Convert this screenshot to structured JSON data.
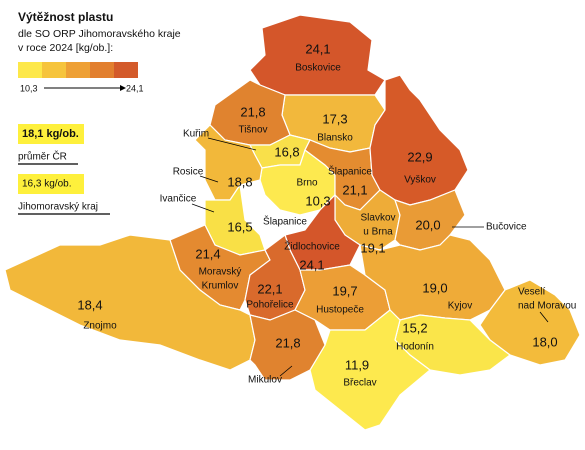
{
  "legend": {
    "title": "Výtěžnost plastu",
    "subtitle": [
      "dle SO ORP Jihomoravského kraje",
      "v roce 2024 [kg/ob.]:"
    ],
    "min": "10,3",
    "max": "24,1",
    "colors": [
      "#fde84a",
      "#f6c43c",
      "#eea035",
      "#e27f2e",
      "#d35a2a"
    ]
  },
  "references": [
    {
      "value": "18,1 kg/ob.",
      "label": "průměr ČR",
      "color": "#fef03c"
    },
    {
      "value": "16,3 kg/ob.",
      "label": "Jihomoravský kraj",
      "color": "#fef03c"
    }
  ],
  "regions": [
    {
      "name": [
        "Boskovice"
      ],
      "value": "24,1",
      "color": "#d4562a"
    },
    {
      "name": [
        "Blansko"
      ],
      "value": "17,3",
      "color": "#f2b83c"
    },
    {
      "name": [
        "Tišnov"
      ],
      "value": "21,8",
      "color": "#e0832f"
    },
    {
      "name": [
        "Kuřim"
      ],
      "value": "16,8",
      "color": "#f9e04a"
    },
    {
      "name": [
        "Brno"
      ],
      "value": "10,3",
      "color": "#fde94f"
    },
    {
      "name": [
        "Šlapanice"
      ],
      "value": "21,1",
      "color": "#e48c30"
    },
    {
      "name": [
        "Vyškov"
      ],
      "value": "22,9",
      "color": "#d65a28"
    },
    {
      "name": [
        "Rosice"
      ],
      "value": "18,8",
      "color": "#f2b83a"
    },
    {
      "name": [
        "Ivančice"
      ],
      "value": "16,5",
      "color": "#f9e046"
    },
    {
      "name": [
        "Slavkov",
        "u Brna"
      ],
      "value": "19,1",
      "color": "#eeac38"
    },
    {
      "name": [
        "Bučovice"
      ],
      "value": "20,0",
      "color": "#e99b36"
    },
    {
      "name": [
        "Moravský",
        "Krumlov"
      ],
      "value": "21,4",
      "color": "#e48a30"
    },
    {
      "name": [
        "Židlochovice"
      ],
      "value": "24,1",
      "color": "#d4562a"
    },
    {
      "name": [
        "Pohořelice"
      ],
      "value": "22,1",
      "color": "#d96a2c"
    },
    {
      "name": [
        "Znojmo"
      ],
      "value": "18,4",
      "color": "#f2b83a"
    },
    {
      "name": [
        "Hustopeče"
      ],
      "value": "19,7",
      "color": "#ec9e36"
    },
    {
      "name": [
        "Kyjov"
      ],
      "value": "19,0",
      "color": "#efab38"
    },
    {
      "name": [
        "Veselí",
        "nad Moravou"
      ],
      "value": "18,0",
      "color": "#f3bb3b"
    },
    {
      "name": [
        "Hodonín"
      ],
      "value": "15,2",
      "color": "#fae54a"
    },
    {
      "name": [
        "Břeclav"
      ],
      "value": "11,9",
      "color": "#fde94e"
    },
    {
      "name": [
        "Mikulov"
      ],
      "value": "21,8",
      "color": "#e0832f"
    }
  ]
}
